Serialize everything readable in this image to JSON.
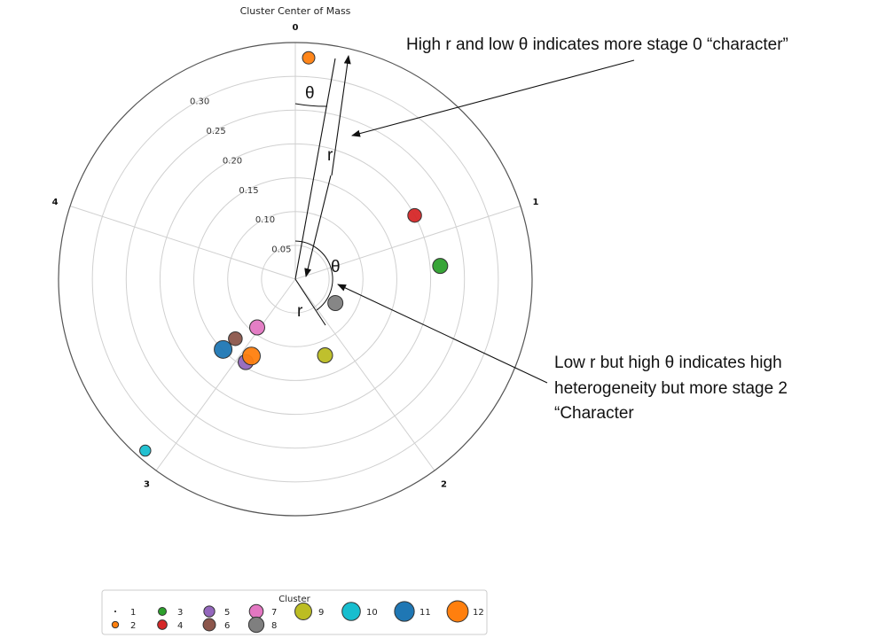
{
  "chart_data": {
    "type": "scatter",
    "projection": "polar",
    "title": "Cluster Center of Mass",
    "angular_ticks": [
      "0",
      "1",
      "2",
      "3",
      "4"
    ],
    "radial_ticks": [
      "0.05",
      "0.10",
      "0.15",
      "0.20",
      "0.25",
      "0.30"
    ],
    "rlim": [
      0,
      0.35
    ],
    "grid": true,
    "points": [
      {
        "cluster": "2",
        "theta": 0.06,
        "r": 0.328,
        "color": "#ff7f0e",
        "size": 4
      },
      {
        "cluster": "3",
        "theta": 1.48,
        "r": 0.215,
        "color": "#2ca02c",
        "size": 5
      },
      {
        "cluster": "4",
        "theta": 1.08,
        "r": 0.2,
        "color": "#d62728",
        "size": 4.5
      },
      {
        "cluster": "5",
        "theta": 3.68,
        "r": 0.143,
        "color": "#9467bd",
        "size": 5
      },
      {
        "cluster": "6",
        "theta": 3.93,
        "r": 0.125,
        "color": "#8c564b",
        "size": 4.5
      },
      {
        "cluster": "7",
        "theta": 3.81,
        "r": 0.091,
        "color": "#e377c2",
        "size": 5
      },
      {
        "cluster": "8",
        "theta": 2.11,
        "r": 0.069,
        "color": "#7f7f7f",
        "size": 5
      },
      {
        "cluster": "9",
        "theta": 2.77,
        "r": 0.121,
        "color": "#bcbd22",
        "size": 5
      },
      {
        "cluster": "10",
        "theta": 3.86,
        "r": 0.337,
        "color": "#17becf",
        "size": 3.5
      },
      {
        "cluster": "11",
        "theta": 3.94,
        "r": 0.149,
        "color": "#1f77b4",
        "size": 6
      },
      {
        "cluster": "12",
        "theta": 3.66,
        "r": 0.131,
        "color": "#ff7f0e",
        "size": 6
      }
    ],
    "legend": {
      "title": "Cluster",
      "placement": "bottom-left",
      "entries": [
        {
          "label": "1",
          "color": "#111111",
          "size": 1
        },
        {
          "label": "2",
          "color": "#ff7f0e",
          "size": 2
        },
        {
          "label": "3",
          "color": "#2ca02c",
          "size": 3
        },
        {
          "label": "4",
          "color": "#d62728",
          "size": 4
        },
        {
          "label": "5",
          "color": "#9467bd",
          "size": 5
        },
        {
          "label": "6",
          "color": "#8c564b",
          "size": 6
        },
        {
          "label": "7",
          "color": "#e377c2",
          "size": 7
        },
        {
          "label": "8",
          "color": "#7f7f7f",
          "size": 8
        },
        {
          "label": "9",
          "color": "#bcbd22",
          "size": 9
        },
        {
          "label": "10",
          "color": "#17becf",
          "size": 10
        },
        {
          "label": "11",
          "color": "#1f77b4",
          "size": 11
        },
        {
          "label": "12",
          "color": "#ff7f0e",
          "size": 12
        }
      ]
    }
  },
  "annotations": {
    "top_text": "High r and low θ indicates more stage 0 “character”",
    "bottom_lines": [
      "Low r but high θ indicates high",
      "heterogeneity but more stage 2",
      "“Character"
    ],
    "theta_symbol": "θ",
    "r_symbol": "r"
  }
}
